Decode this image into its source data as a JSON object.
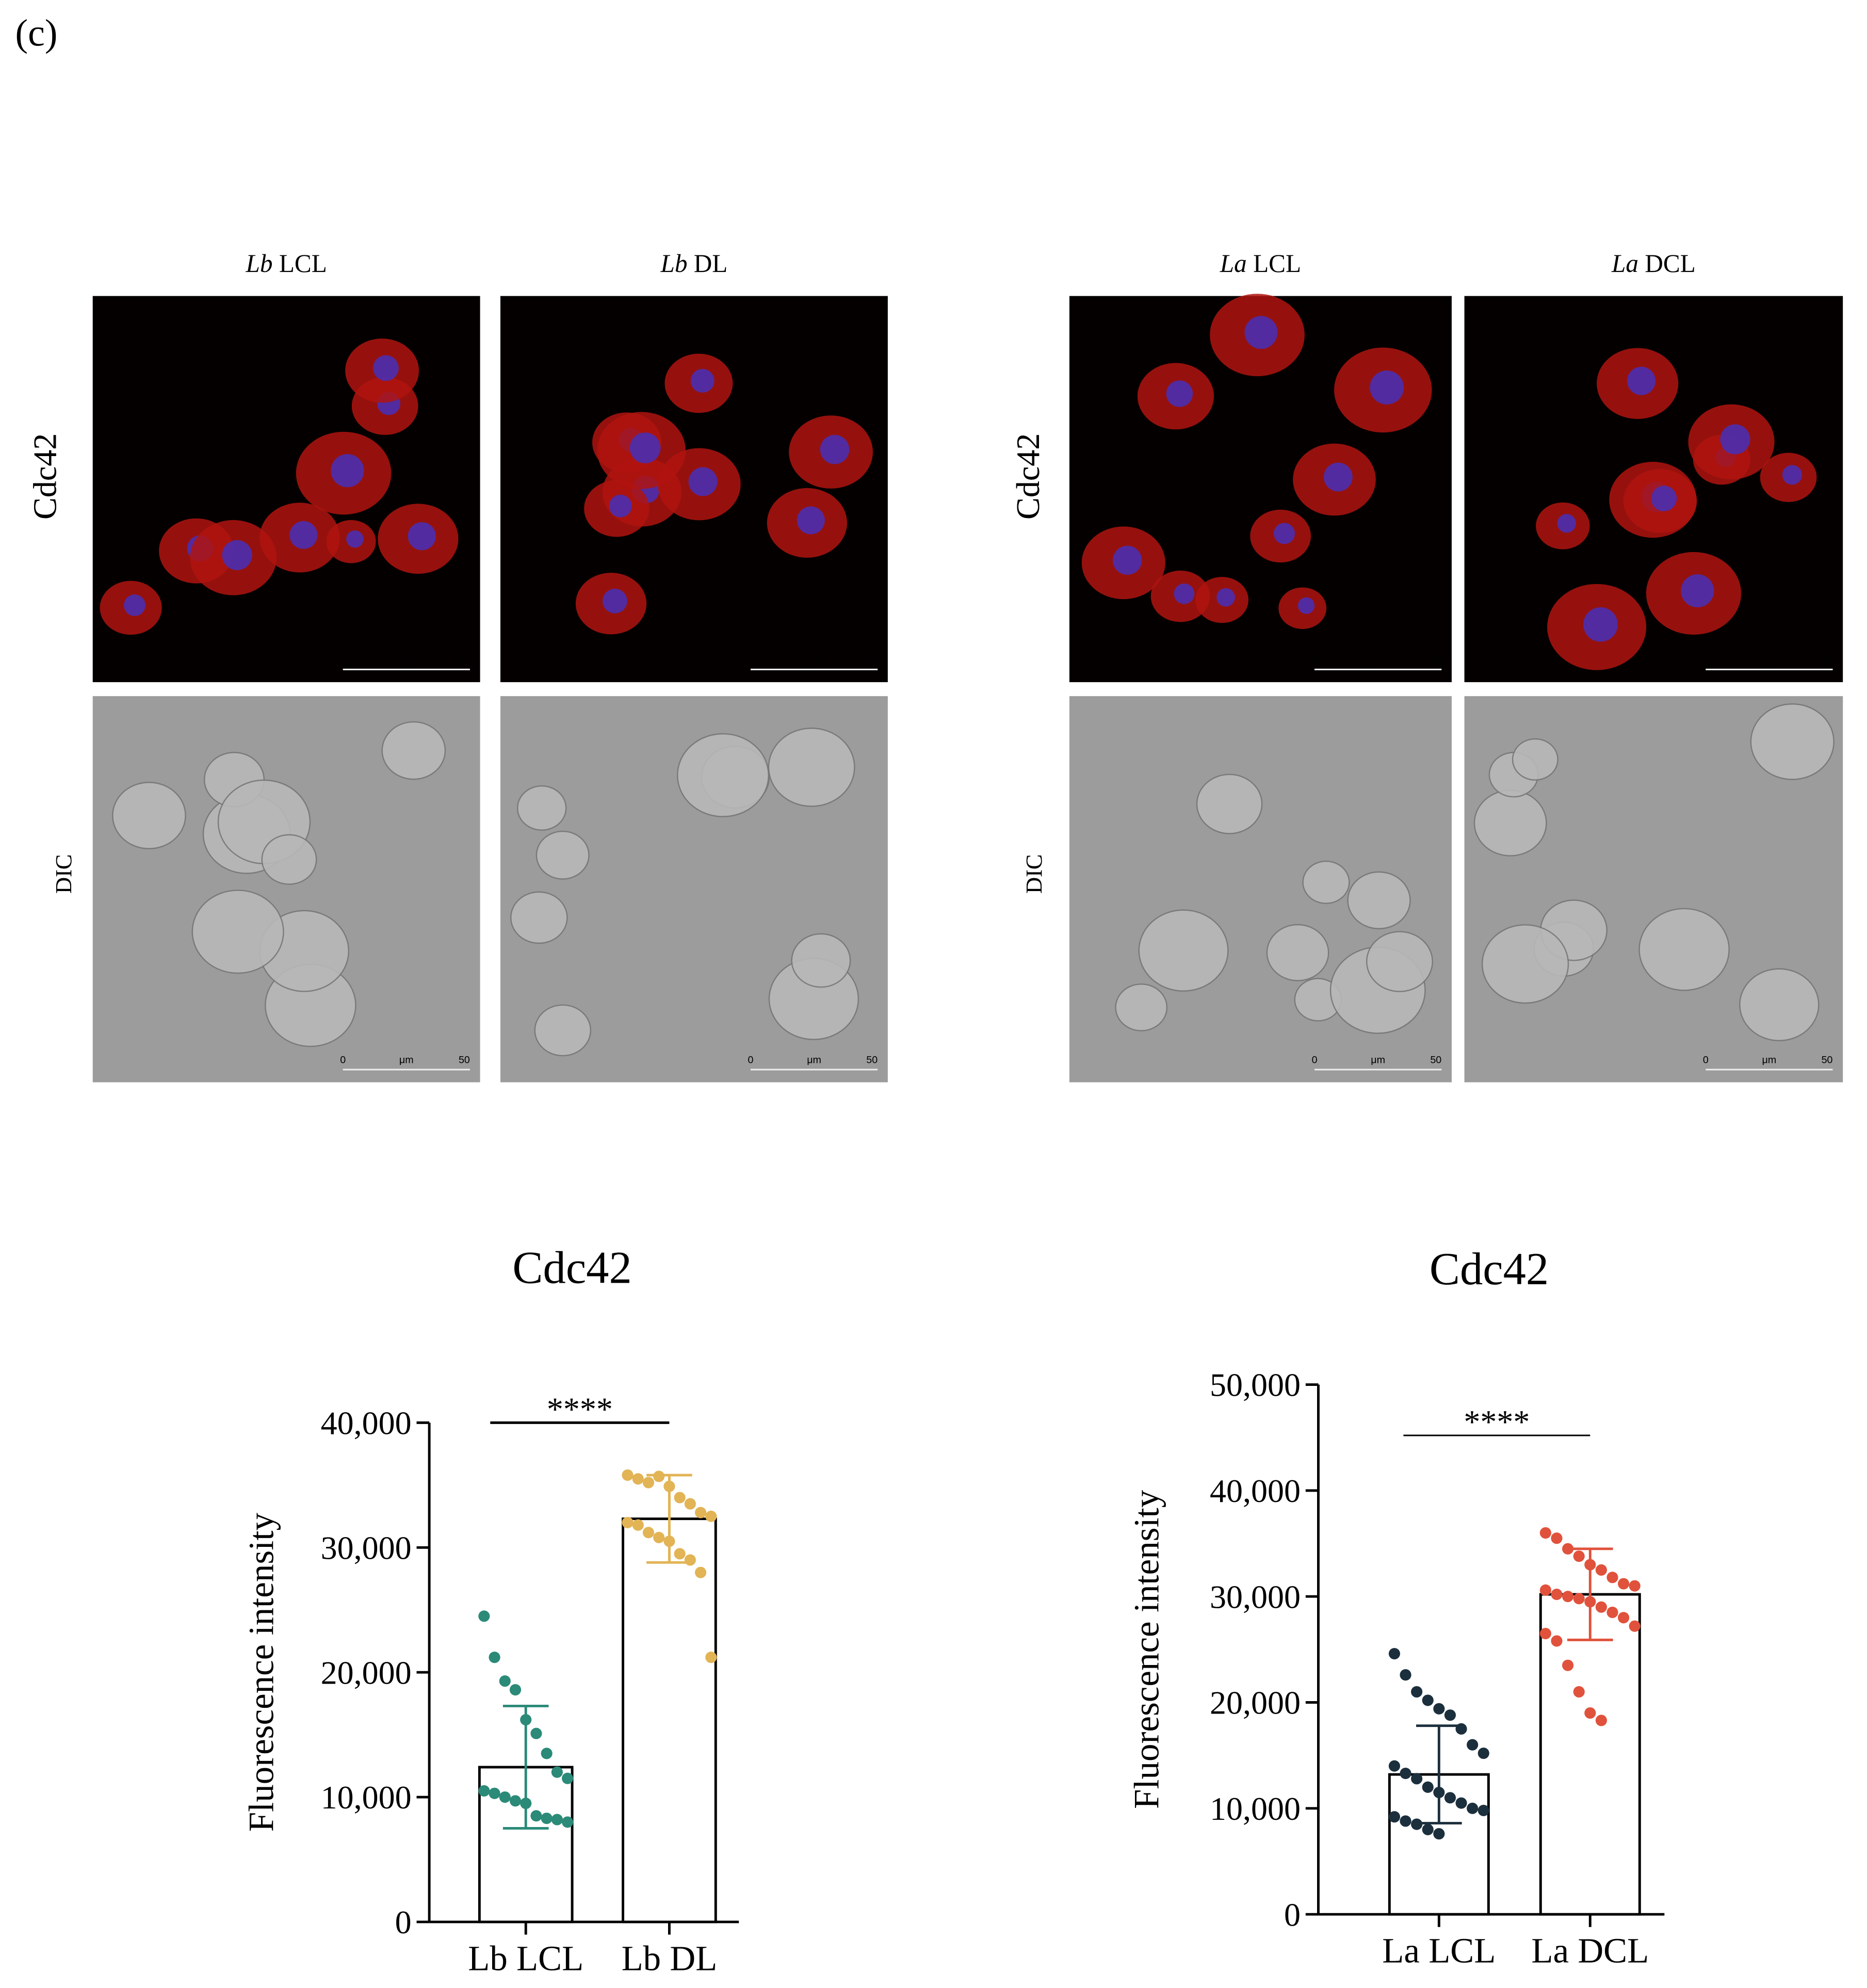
{
  "panel_label": "(c)",
  "microscopy": {
    "panels": [
      {
        "columns": [
          {
            "species": "Lb",
            "strain": "LCL"
          },
          {
            "species": "Lb",
            "strain": "DL"
          }
        ],
        "rows": [
          "Cdc42",
          "DIC"
        ]
      },
      {
        "columns": [
          {
            "species": "La",
            "strain": "LCL"
          },
          {
            "species": "La",
            "strain": "DCL"
          }
        ],
        "rows": [
          "Cdc42",
          "DIC"
        ]
      }
    ],
    "scale_bar": {
      "start": "0",
      "unit": "μm",
      "end": "50"
    }
  },
  "chart_data": [
    {
      "type": "bar",
      "title": "Cdc42",
      "ylabel": "Fluorescence intensity",
      "categories": [
        "Lb LCL",
        "Lb DL"
      ],
      "values": [
        12400,
        32300
      ],
      "errors": [
        4900,
        3500
      ],
      "colors": [
        "#2b8a78",
        "#e2b455"
      ],
      "points": [
        [
          24500,
          21200,
          19300,
          18600,
          16200,
          15100,
          13500,
          12000,
          11500,
          10500,
          10300,
          10000,
          9700,
          9500,
          8500,
          8300,
          8200,
          8000
        ],
        [
          35800,
          35500,
          35200,
          35700,
          34900,
          34000,
          33500,
          32800,
          32500,
          32000,
          31800,
          31200,
          30800,
          30500,
          29500,
          29000,
          28000,
          21200
        ]
      ],
      "annotation": "****",
      "ylim": [
        0,
        40000
      ],
      "yticks": [
        0,
        {
          "value": 10000,
          "label": "10,000"
        },
        {
          "value": 20000,
          "label": "20,000"
        },
        {
          "value": 30000,
          "label": "30,000"
        },
        {
          "value": 40000,
          "label": "40,000"
        }
      ]
    },
    {
      "type": "bar",
      "title": "Cdc42",
      "ylabel": "Fluorescence intensity",
      "categories": [
        "La LCL",
        "La DCL"
      ],
      "values": [
        13200,
        30200
      ],
      "errors": [
        4600,
        4300
      ],
      "colors": [
        "#1c2f3d",
        "#e0523c"
      ],
      "points": [
        [
          24600,
          22600,
          21000,
          20200,
          19400,
          18800,
          17500,
          16000,
          15200,
          14000,
          13300,
          12800,
          12000,
          11500,
          11000,
          10500,
          10000,
          9800,
          9200,
          8800,
          8500,
          8000,
          7600
        ],
        [
          36000,
          35500,
          34500,
          33800,
          33000,
          32500,
          31800,
          31200,
          31000,
          30600,
          30200,
          30000,
          29800,
          29500,
          29000,
          28500,
          28000,
          27200,
          26500,
          25800,
          23500,
          21000,
          19000,
          18300
        ]
      ],
      "annotation": "****",
      "ylim": [
        0,
        50000
      ],
      "yticks": [
        0,
        {
          "value": 10000,
          "label": "10,000"
        },
        {
          "value": 20000,
          "label": "20,000"
        },
        {
          "value": 30000,
          "label": "30,000"
        },
        {
          "value": 40000,
          "label": "40,000"
        },
        {
          "value": 50000,
          "label": "50,000"
        }
      ]
    }
  ]
}
